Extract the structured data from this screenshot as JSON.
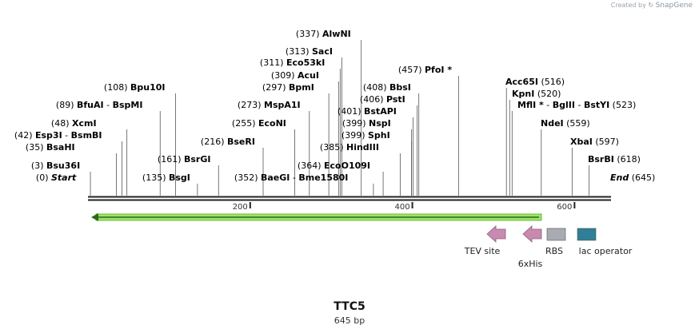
{
  "credit": {
    "prefix": "Created by",
    "brand": "SnapGene"
  },
  "plasmid": {
    "name": "TTC5",
    "length_label": "645 bp",
    "length": 645
  },
  "axis_ticks": [
    {
      "value": 200,
      "label": "200"
    },
    {
      "value": 400,
      "label": "400"
    },
    {
      "value": 600,
      "label": "600"
    }
  ],
  "sites": [
    {
      "pos": "(0)",
      "name": "Start",
      "at": 0,
      "italic": true
    },
    {
      "pos": "(3)",
      "name": "Bsu36I",
      "at": 3
    },
    {
      "pos": "(35)",
      "name": "BsaHI",
      "at": 35
    },
    {
      "pos": "(42)",
      "name": "Esp3I",
      "name2": "BsmBI",
      "at": 42
    },
    {
      "pos": "(48)",
      "name": "XcmI",
      "at": 48
    },
    {
      "pos": "(89)",
      "name": "BfuAI",
      "name2": "BspMI",
      "at": 89
    },
    {
      "pos": "(108)",
      "name": "Bpu10I",
      "at": 108
    },
    {
      "pos": "(135)",
      "name": "BsgI",
      "at": 135
    },
    {
      "pos": "(161)",
      "name": "BsrGI",
      "at": 161
    },
    {
      "pos": "(216)",
      "name": "BseRI",
      "at": 216
    },
    {
      "pos": "(255)",
      "name": "EcoNI",
      "at": 255
    },
    {
      "pos": "(273)",
      "name": "MspA1I",
      "at": 273
    },
    {
      "pos": "(297)",
      "name": "BpmI",
      "at": 297
    },
    {
      "pos": "(309)",
      "name": "AcuI",
      "at": 309
    },
    {
      "pos": "(311)",
      "name": "Eco53kI",
      "at": 311
    },
    {
      "pos": "(313)",
      "name": "SacI",
      "at": 313
    },
    {
      "pos": "(337)",
      "name": "AlwNI",
      "at": 337
    },
    {
      "pos": "(352)",
      "name": "BaeGI",
      "name2": "Bme1580I",
      "at": 352
    },
    {
      "pos": "(364)",
      "name": "EcoO109I",
      "at": 364
    },
    {
      "pos": "(385)",
      "name": "HindIII",
      "at": 385
    },
    {
      "pos": "(399)",
      "name": "SphI",
      "at": 399
    },
    {
      "pos": "(399)",
      "name": "NspI",
      "at": 399
    },
    {
      "pos": "(401)",
      "name": "BstAPI",
      "at": 401
    },
    {
      "pos": "(406)",
      "name": "PstI",
      "at": 406
    },
    {
      "pos": "(408)",
      "name": "BbsI",
      "at": 408
    },
    {
      "pos": "(457)",
      "name": "PfoI *",
      "at": 457
    },
    {
      "pos": "(516)",
      "name": "Acc65I",
      "at": 516
    },
    {
      "pos": "(520)",
      "name": "KpnI",
      "at": 520
    },
    {
      "pos": "(523)",
      "name": "MflI *",
      "name2": "BglII",
      "name3": "BstYI",
      "at": 523
    },
    {
      "pos": "(559)",
      "name": "NdeI",
      "at": 559
    },
    {
      "pos": "(597)",
      "name": "XbaI",
      "at": 597
    },
    {
      "pos": "(618)",
      "name": "BsrBI",
      "at": 618
    },
    {
      "pos": "(645)",
      "name": "End",
      "at": 645,
      "italic": true
    }
  ],
  "features": [
    {
      "name": "TEV site",
      "shape": "arrow-left",
      "color": "#c98ab0"
    },
    {
      "name": "6xHis",
      "shape": "arrow-left",
      "color": "#c98ab0"
    },
    {
      "name": "RBS",
      "shape": "box",
      "color": "#a9abb3"
    },
    {
      "name": "lac operator",
      "shape": "box",
      "color": "#2f7f96"
    }
  ],
  "orf": {
    "direction": "reverse",
    "color": "#9be36a"
  }
}
